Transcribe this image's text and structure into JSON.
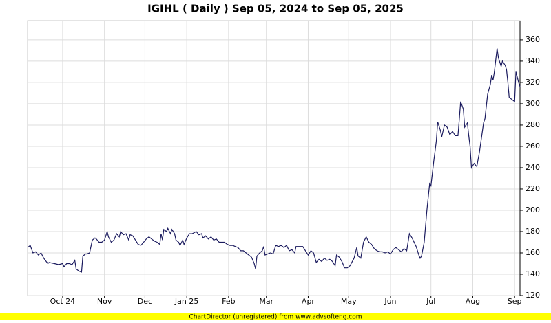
{
  "chart_data": {
    "type": "line",
    "title": "IGIHL ( Daily ) Sep 05, 2024 to Sep 05, 2025",
    "footer": "ChartDirector (unregistered) from www.advsofteng.com",
    "color": "#1a1a5e",
    "grid": true,
    "xlim": [
      0,
      365
    ],
    "ylim": [
      120,
      378
    ],
    "yticks": [
      120,
      140,
      160,
      180,
      200,
      220,
      240,
      260,
      280,
      300,
      320,
      340,
      360
    ],
    "xticks": [
      {
        "value": 26,
        "label": "Oct 24"
      },
      {
        "value": 57,
        "label": "Nov"
      },
      {
        "value": 87,
        "label": "Dec"
      },
      {
        "value": 118,
        "label": "Jan 25"
      },
      {
        "value": 149,
        "label": "Feb"
      },
      {
        "value": 177,
        "label": "Mar"
      },
      {
        "value": 208,
        "label": "Apr"
      },
      {
        "value": 238,
        "label": "May"
      },
      {
        "value": 269,
        "label": "Jun"
      },
      {
        "value": 299,
        "label": "Jul"
      },
      {
        "value": 330,
        "label": "Aug"
      },
      {
        "value": 361,
        "label": "Sep"
      }
    ],
    "x": [
      0,
      2,
      4,
      6,
      8,
      10,
      12,
      15,
      16,
      20,
      23,
      26,
      27,
      29,
      31,
      33,
      35,
      36,
      38,
      40,
      41,
      43,
      44,
      46,
      48,
      50,
      51,
      53,
      55,
      57,
      59,
      60,
      62,
      64,
      66,
      68,
      69,
      71,
      73,
      75,
      76,
      78,
      80,
      82,
      84,
      86,
      88,
      90,
      92,
      94,
      96,
      98,
      99,
      100,
      101,
      103,
      104,
      106,
      107,
      109,
      110,
      112,
      113,
      115,
      116,
      118,
      120,
      122,
      125,
      127,
      129,
      130,
      132,
      134,
      136,
      138,
      140,
      142,
      144,
      146,
      148,
      150,
      152,
      154,
      156,
      158,
      160,
      162,
      164,
      166,
      168,
      169,
      170,
      172,
      174,
      175,
      176,
      180,
      182,
      184,
      186,
      188,
      190,
      192,
      194,
      196,
      198,
      199,
      202,
      204,
      206,
      208,
      210,
      212,
      214,
      216,
      218,
      220,
      222,
      224,
      226,
      228,
      229,
      231,
      233,
      235,
      237,
      239,
      242,
      244,
      245,
      247,
      249,
      251,
      253,
      255,
      257,
      259,
      261,
      263,
      265,
      267,
      269,
      271,
      273,
      275,
      277,
      279,
      281,
      283,
      285,
      288,
      290,
      291,
      292,
      294,
      296,
      298,
      299,
      301,
      303,
      304,
      306,
      307,
      309,
      311,
      313,
      315,
      317,
      319,
      320,
      321,
      323,
      324,
      326,
      327,
      328,
      329,
      331,
      333,
      335,
      338,
      339,
      341,
      343,
      344,
      345,
      346,
      348,
      349,
      351,
      352,
      354,
      355,
      356,
      357,
      359,
      361,
      362,
      364,
      365
    ],
    "values": [
      165,
      167,
      160,
      161,
      158,
      160,
      155,
      150,
      151,
      150,
      149,
      150,
      147,
      150,
      150,
      149,
      153,
      145,
      143,
      142,
      157,
      159,
      159,
      160,
      172,
      174,
      173,
      170,
      170,
      172,
      180,
      175,
      170,
      172,
      178,
      175,
      180,
      177,
      178,
      172,
      177,
      176,
      172,
      168,
      167,
      170,
      173,
      175,
      173,
      171,
      170,
      168,
      178,
      172,
      182,
      180,
      183,
      178,
      182,
      178,
      172,
      170,
      167,
      172,
      168,
      174,
      178,
      178,
      180,
      177,
      178,
      174,
      176,
      173,
      175,
      172,
      173,
      170,
      170,
      170,
      168,
      167,
      167,
      166,
      165,
      162,
      162,
      160,
      158,
      156,
      150,
      145,
      157,
      160,
      162,
      166,
      158,
      160,
      159,
      167,
      166,
      167,
      165,
      167,
      162,
      163,
      160,
      166,
      166,
      166,
      162,
      158,
      162,
      160,
      151,
      154,
      152,
      155,
      153,
      154,
      152,
      148,
      158,
      156,
      152,
      146,
      146,
      148,
      155,
      165,
      157,
      155,
      170,
      175,
      170,
      168,
      164,
      162,
      161,
      161,
      160,
      161,
      159,
      163,
      165,
      163,
      161,
      164,
      162,
      178,
      174,
      166,
      158,
      155,
      157,
      170,
      200,
      225,
      223,
      245,
      265,
      283,
      275,
      269,
      280,
      278,
      271,
      274,
      270,
      270,
      285,
      302,
      295,
      278,
      282,
      270,
      260,
      240,
      244,
      241,
      255,
      282,
      286,
      309,
      318,
      327,
      322,
      330,
      352,
      343,
      335,
      340,
      336,
      332,
      320,
      306,
      304,
      302,
      330,
      320,
      316
    ]
  }
}
